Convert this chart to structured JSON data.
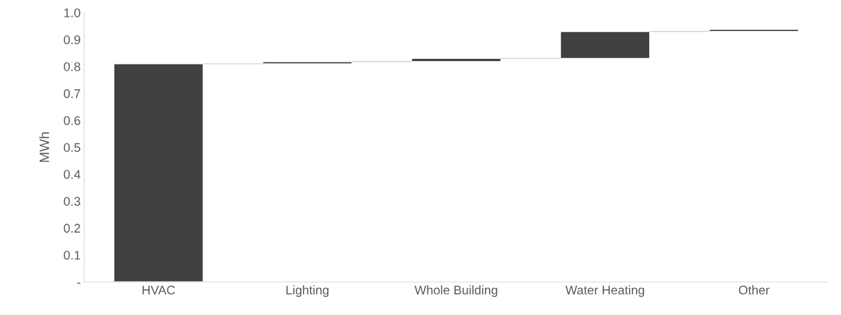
{
  "chart_data": {
    "type": "bar",
    "ylabel": "MWh",
    "categories": [
      "HVAC",
      "Lighting",
      "Whole Building",
      "Water Heating",
      "Other"
    ],
    "values": [
      0.81,
      0.008,
      0.012,
      0.1,
      0.008
    ],
    "base": [
      0,
      0.81,
      0.818,
      0.83,
      0.93
    ],
    "color": "#404040",
    "ylim": [
      0,
      1.0
    ],
    "yticks": [
      {
        "value": 0,
        "label": "-"
      },
      0.1,
      0.2,
      0.3,
      0.4,
      0.5,
      0.6,
      0.7,
      0.8,
      0.9,
      "1.0"
    ],
    "grid": false,
    "legend": false
  }
}
